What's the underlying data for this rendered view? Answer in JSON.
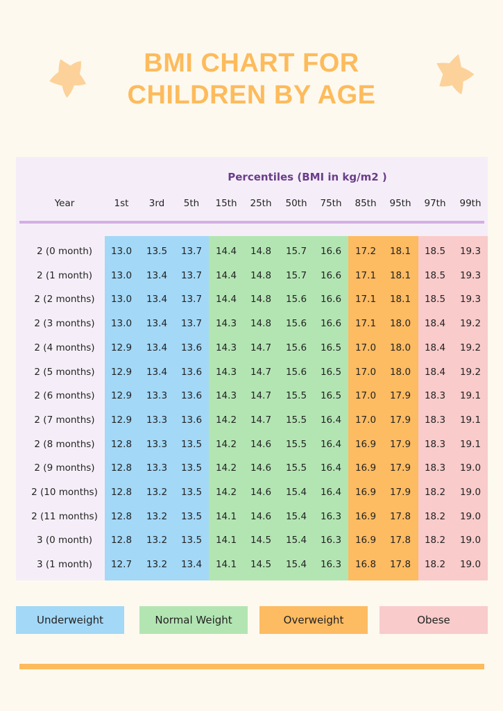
{
  "title": {
    "line1": "BMI CHART FOR",
    "line2": "CHILDREN BY AGE"
  },
  "colors": {
    "title": "#fdbb5c",
    "star": "#fcd29a",
    "underweight": "#a3d8f7",
    "normal": "#b3e5b3",
    "overweight": "#fdbb62",
    "obese": "#f9cbcb",
    "header_rule": "#d3aee3",
    "percentile_title": "#6a3d8a"
  },
  "table": {
    "percentiles_title": "Percentiles (BMI in kg/m2 )",
    "year_header": "Year",
    "columns": [
      "1st",
      "3rd",
      "5th",
      "15th",
      "25th",
      "50th",
      "75th",
      "85th",
      "95th",
      "97th",
      "99th"
    ],
    "rows": [
      {
        "year": "2 (0 month)",
        "values": [
          "13.0",
          "13.5",
          "13.7",
          "14.4",
          "14.8",
          "15.7",
          "16.6",
          "17.2",
          "18.1",
          "18.5",
          "19.3"
        ]
      },
      {
        "year": "2 (1 month)",
        "values": [
          "13.0",
          "13.4",
          "13.7",
          "14.4",
          "14.8",
          "15.7",
          "16.6",
          "17.1",
          "18.1",
          "18.5",
          "19.3"
        ]
      },
      {
        "year": "2 (2 months)",
        "values": [
          "13.0",
          "13.4",
          "13.7",
          "14.4",
          "14.8",
          "15.6",
          "16.6",
          "17.1",
          "18.1",
          "18.5",
          "19.3"
        ]
      },
      {
        "year": "2 (3 months)",
        "values": [
          "13.0",
          "13.4",
          "13.7",
          "14.3",
          "14.8",
          "15.6",
          "16.6",
          "17.1",
          "18.0",
          "18.4",
          "19.2"
        ]
      },
      {
        "year": "2 (4 months)",
        "values": [
          "12.9",
          "13.4",
          "13.6",
          "14.3",
          "14.7",
          "15.6",
          "16.5",
          "17.0",
          "18.0",
          "18.4",
          "19.2"
        ]
      },
      {
        "year": "2 (5 months)",
        "values": [
          "12.9",
          "13.4",
          "13.6",
          "14.3",
          "14.7",
          "15.6",
          "16.5",
          "17.0",
          "18.0",
          "18.4",
          "19.2"
        ]
      },
      {
        "year": "2 (6 months)",
        "values": [
          "12.9",
          "13.3",
          "13.6",
          "14.3",
          "14.7",
          "15.5",
          "16.5",
          "17.0",
          "17.9",
          "18.3",
          "19.1"
        ]
      },
      {
        "year": "2 (7 months)",
        "values": [
          "12.9",
          "13.3",
          "13.6",
          "14.2",
          "14.7",
          "15.5",
          "16.4",
          "17.0",
          "17.9",
          "18.3",
          "19.1"
        ]
      },
      {
        "year": "2 (8 months)",
        "values": [
          "12.8",
          "13.3",
          "13.5",
          "14.2",
          "14.6",
          "15.5",
          "16.4",
          "16.9",
          "17.9",
          "18.3",
          "19.1"
        ]
      },
      {
        "year": "2 (9 months)",
        "values": [
          "12.8",
          "13.3",
          "13.5",
          "14.2",
          "14.6",
          "15.5",
          "16.4",
          "16.9",
          "17.9",
          "18.3",
          "19.0"
        ]
      },
      {
        "year": "2 (10 months)",
        "values": [
          "12.8",
          "13.2",
          "13.5",
          "14.2",
          "14.6",
          "15.4",
          "16.4",
          "16.9",
          "17.9",
          "18.2",
          "19.0"
        ]
      },
      {
        "year": "2 (11 months)",
        "values": [
          "12.8",
          "13.2",
          "13.5",
          "14.1",
          "14.6",
          "15.4",
          "16.3",
          "16.9",
          "17.8",
          "18.2",
          "19.0"
        ]
      },
      {
        "year": "3 (0 month)",
        "values": [
          "12.8",
          "13.2",
          "13.5",
          "14.1",
          "14.5",
          "15.4",
          "16.3",
          "16.9",
          "17.8",
          "18.2",
          "19.0"
        ]
      },
      {
        "year": "3 (1 month)",
        "values": [
          "12.7",
          "13.2",
          "13.4",
          "14.1",
          "14.5",
          "15.4",
          "16.3",
          "16.8",
          "17.8",
          "18.2",
          "19.0"
        ]
      }
    ]
  },
  "legend": [
    {
      "label": "Underweight",
      "color": "#a3d8f7"
    },
    {
      "label": "Normal Weight",
      "color": "#b3e5b3"
    },
    {
      "label": "Overweight",
      "color": "#fdbb62"
    },
    {
      "label": "Obese",
      "color": "#f9cbcb"
    }
  ]
}
